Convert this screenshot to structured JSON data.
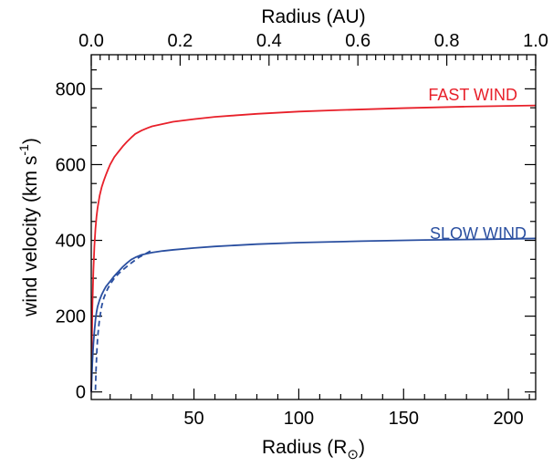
{
  "chart_data": {
    "type": "line",
    "xlabel": "Radius (R",
    "xlabel_symbol": "⊙",
    "xlabel_close": ")",
    "x2label": "Radius (AU)",
    "ylabel": "wind velocity (km s",
    "ylabel_sup": "-1",
    "ylabel_close": ")",
    "xlim": [
      1,
      213
    ],
    "ylim": [
      -20,
      890
    ],
    "x2lim": [
      0.0,
      1.0
    ],
    "xticks": [
      50,
      100,
      150,
      200
    ],
    "yticks": [
      0,
      200,
      400,
      600,
      800
    ],
    "x2ticks": [
      "0.0",
      "0.2",
      "0.4",
      "0.6",
      "0.8",
      "1.0"
    ],
    "grid": false,
    "series": [
      {
        "name": "FAST WIND",
        "color": "#e8202a",
        "style": "solid",
        "x": [
          1.0,
          1.5,
          2.0,
          2.5,
          3.0,
          3.5,
          4.0,
          5.0,
          6.0,
          7.0,
          8.0,
          9.0,
          10.0,
          12.0,
          14.0,
          16.0,
          18.0,
          20.0,
          22.0,
          25.0,
          28.0,
          30.0,
          35.0,
          40.0,
          50.0,
          60.0,
          70.0,
          80.0,
          100.0,
          120.0,
          150.0,
          180.0,
          213.0
        ],
        "y": [
          0,
          215,
          318,
          385,
          430,
          462,
          485,
          518,
          541,
          558,
          573,
          587,
          600,
          620,
          634,
          648,
          660,
          671,
          681,
          690,
          697,
          701,
          707,
          713,
          720,
          726,
          730,
          734,
          740,
          744,
          749,
          753,
          756
        ]
      },
      {
        "name": "SLOW WIND",
        "color": "#2a4fa0",
        "style": "solid",
        "x": [
          1.0,
          1.5,
          2.0,
          2.5,
          3.0,
          3.5,
          4.0,
          5.0,
          6.0,
          7.0,
          8.0,
          10.0,
          12.0,
          14.0,
          16.0,
          18.0,
          20.0,
          22.0,
          25.0,
          30.0,
          35.0,
          40.0,
          50.0,
          60.0,
          80.0,
          100.0,
          130.0,
          160.0,
          190.0,
          213.0
        ],
        "y": [
          0,
          75,
          125,
          160,
          190,
          210,
          225,
          243,
          257,
          268,
          278,
          292,
          306,
          318,
          330,
          340,
          349,
          355,
          362,
          368,
          372,
          375,
          380,
          384,
          390,
          394,
          398,
          401,
          403,
          405
        ]
      },
      {
        "name": "",
        "color": "#2a4fa0",
        "style": "dashed",
        "x": [
          3.0,
          3.3,
          3.7,
          4.0,
          4.5,
          5.0,
          6.0,
          7.0,
          8.0,
          9.0,
          10.0,
          12.0,
          14.0,
          16.0,
          18.0,
          20.0,
          22.0,
          24.0,
          26.0,
          28.0,
          30.0
        ],
        "y": [
          5,
          60,
          110,
          140,
          170,
          194,
          227,
          248,
          262,
          274,
          284,
          300,
          312,
          322,
          331,
          340,
          348,
          356,
          362,
          368,
          375
        ]
      }
    ],
    "labels": {
      "fast": "FAST WIND",
      "slow": "SLOW WIND"
    }
  }
}
